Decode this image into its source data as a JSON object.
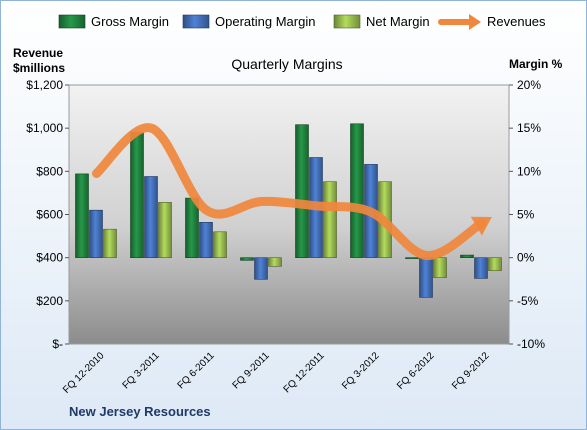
{
  "chart_data": {
    "type": "bar",
    "title": "Quarterly Margins",
    "left_axis_title": [
      "Revenue",
      "$millions"
    ],
    "right_axis_title": "Margin %",
    "source_label": "New Jersey Resources",
    "categories": [
      "FQ 12-2010",
      "FQ 3-2011",
      "FQ 6-2011",
      "FQ 9-2011",
      "FQ 12-2011",
      "FQ 3-2012",
      "FQ 6-2012",
      "FQ 9-2012"
    ],
    "left_axis": {
      "ylim": [
        0,
        1200
      ],
      "ticks": [
        0,
        200,
        400,
        600,
        800,
        1000,
        1200
      ],
      "tick_labels": [
        "$-",
        "$200",
        "$400",
        "$600",
        "$800",
        "$1,000",
        "$1,200"
      ]
    },
    "right_axis": {
      "ylim": [
        -10,
        20
      ],
      "ticks": [
        -10,
        -5,
        0,
        5,
        10,
        15,
        20
      ],
      "tick_labels": [
        "-10%",
        "-5%",
        "0%",
        "5%",
        "10%",
        "15%",
        "20%"
      ]
    },
    "series": [
      {
        "name": "Gross Margin",
        "axis": "right",
        "kind": "bar",
        "color": "#1e7a3a",
        "values": [
          9.7,
          14.5,
          6.9,
          -0.3,
          15.4,
          15.5,
          -0.1,
          0.3
        ]
      },
      {
        "name": "Operating Margin",
        "axis": "right",
        "kind": "bar",
        "color": "#3f68ac",
        "values": [
          5.5,
          9.4,
          4.1,
          -2.5,
          11.6,
          10.8,
          -4.6,
          -2.4
        ]
      },
      {
        "name": "Net Margin",
        "axis": "right",
        "kind": "bar",
        "color": "#8fb04a",
        "values": [
          3.3,
          6.4,
          3.0,
          -1.0,
          8.8,
          8.8,
          -2.3,
          -1.5
        ]
      },
      {
        "name": "Revenues",
        "axis": "left",
        "kind": "line",
        "color": "#f0873c",
        "values": [
          790,
          1000,
          620,
          660,
          640,
          610,
          410,
          560
        ]
      }
    ],
    "grid": false,
    "legend": "top"
  }
}
